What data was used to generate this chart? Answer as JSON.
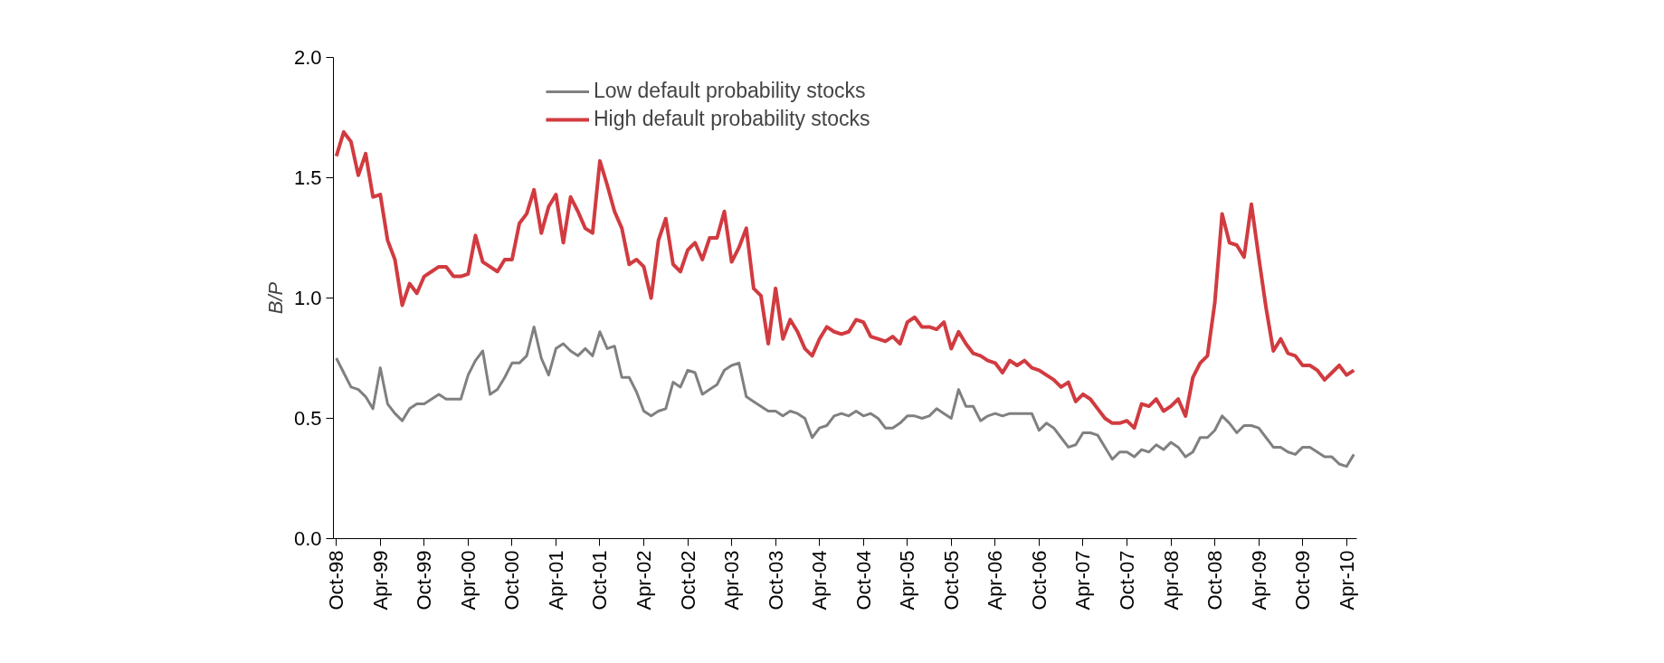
{
  "chart_data": {
    "type": "line",
    "ylabel": "B/P",
    "categories": [
      "Oct-98",
      null,
      null,
      null,
      null,
      null,
      "Apr-99",
      null,
      null,
      null,
      null,
      null,
      "Oct-99",
      null,
      null,
      null,
      null,
      null,
      "Apr-00",
      null,
      null,
      null,
      null,
      null,
      "Oct-00",
      null,
      null,
      null,
      null,
      null,
      "Apr-01",
      null,
      null,
      null,
      null,
      null,
      "Oct-01",
      null,
      null,
      null,
      null,
      null,
      "Apr-02",
      null,
      null,
      null,
      null,
      null,
      "Oct-02",
      null,
      null,
      null,
      null,
      null,
      "Apr-03",
      null,
      null,
      null,
      null,
      null,
      "Oct-03",
      null,
      null,
      null,
      null,
      null,
      "Apr-04",
      null,
      null,
      null,
      null,
      null,
      "Oct-04",
      null,
      null,
      null,
      null,
      null,
      "Apr-05",
      null,
      null,
      null,
      null,
      null,
      "Oct-05",
      null,
      null,
      null,
      null,
      null,
      "Apr-06",
      null,
      null,
      null,
      null,
      null,
      "Oct-06",
      null,
      null,
      null,
      null,
      null,
      "Apr-07",
      null,
      null,
      null,
      null,
      null,
      "Oct-07",
      null,
      null,
      null,
      null,
      null,
      "Apr-08",
      null,
      null,
      null,
      null,
      null,
      "Oct-08",
      null,
      null,
      null,
      null,
      null,
      "Apr-09",
      null,
      null,
      null,
      null,
      null,
      "Oct-09",
      null,
      null,
      null,
      null,
      null,
      "Apr-10",
      null
    ],
    "series": [
      {
        "name": "Low default probability stocks",
        "color": "#808080",
        "values": [
          0.75,
          0.69,
          0.63,
          0.62,
          0.59,
          0.54,
          0.71,
          0.56,
          0.52,
          0.49,
          0.54,
          0.56,
          0.56,
          0.58,
          0.6,
          0.58,
          0.58,
          0.58,
          0.68,
          0.74,
          0.78,
          0.6,
          0.62,
          0.67,
          0.73,
          0.73,
          0.76,
          0.88,
          0.75,
          0.68,
          0.79,
          0.81,
          0.78,
          0.76,
          0.79,
          0.76,
          0.86,
          0.79,
          0.8,
          0.67,
          0.67,
          0.61,
          0.53,
          0.51,
          0.53,
          0.54,
          0.65,
          0.63,
          0.7,
          0.69,
          0.6,
          0.62,
          0.64,
          0.7,
          0.72,
          0.73,
          0.59,
          0.57,
          0.55,
          0.53,
          0.53,
          0.51,
          0.53,
          0.52,
          0.5,
          0.42,
          0.46,
          0.47,
          0.51,
          0.52,
          0.51,
          0.53,
          0.51,
          0.52,
          0.5,
          0.46,
          0.46,
          0.48,
          0.51,
          0.51,
          0.5,
          0.51,
          0.54,
          0.52,
          0.5,
          0.62,
          0.55,
          0.55,
          0.49,
          0.51,
          0.52,
          0.51,
          0.52,
          0.52,
          0.52,
          0.52,
          0.45,
          0.48,
          0.46,
          0.42,
          0.38,
          0.39,
          0.44,
          0.44,
          0.43,
          0.38,
          0.33,
          0.36,
          0.36,
          0.34,
          0.37,
          0.36,
          0.39,
          0.37,
          0.4,
          0.38,
          0.34,
          0.36,
          0.42,
          0.42,
          0.45,
          0.51,
          0.48,
          0.44,
          0.47,
          0.47,
          0.46,
          0.42,
          0.38,
          0.38,
          0.36,
          0.35,
          0.38,
          0.38,
          0.36,
          0.34,
          0.34,
          0.31,
          0.3,
          0.35
        ]
      },
      {
        "name": "High default probability stocks",
        "color": "#d13b40",
        "values": [
          1.59,
          1.69,
          1.65,
          1.51,
          1.6,
          1.42,
          1.43,
          1.24,
          1.16,
          0.97,
          1.06,
          1.02,
          1.09,
          1.11,
          1.13,
          1.13,
          1.09,
          1.09,
          1.1,
          1.26,
          1.15,
          1.13,
          1.11,
          1.16,
          1.16,
          1.31,
          1.35,
          1.45,
          1.27,
          1.38,
          1.43,
          1.23,
          1.42,
          1.36,
          1.29,
          1.27,
          1.57,
          1.47,
          1.36,
          1.29,
          1.14,
          1.16,
          1.13,
          1.0,
          1.24,
          1.33,
          1.14,
          1.11,
          1.2,
          1.23,
          1.16,
          1.25,
          1.25,
          1.36,
          1.15,
          1.21,
          1.29,
          1.04,
          1.01,
          0.81,
          1.04,
          0.83,
          0.91,
          0.86,
          0.79,
          0.76,
          0.83,
          0.88,
          0.86,
          0.85,
          0.86,
          0.91,
          0.9,
          0.84,
          0.83,
          0.82,
          0.84,
          0.81,
          0.9,
          0.92,
          0.88,
          0.88,
          0.87,
          0.9,
          0.79,
          0.86,
          0.81,
          0.77,
          0.76,
          0.74,
          0.73,
          0.69,
          0.74,
          0.72,
          0.74,
          0.71,
          0.7,
          0.68,
          0.66,
          0.63,
          0.65,
          0.57,
          0.6,
          0.58,
          0.54,
          0.5,
          0.48,
          0.48,
          0.49,
          0.46,
          0.56,
          0.55,
          0.58,
          0.53,
          0.55,
          0.58,
          0.51,
          0.67,
          0.73,
          0.76,
          0.98,
          1.35,
          1.23,
          1.22,
          1.17,
          1.39,
          1.17,
          0.96,
          0.78,
          0.83,
          0.77,
          0.76,
          0.72,
          0.72,
          0.7,
          0.66,
          0.69,
          0.72,
          0.68,
          0.7
        ]
      }
    ],
    "ylim": [
      0,
      2.0
    ],
    "yticks": [
      {
        "value": 0,
        "label": "0.0"
      },
      {
        "value": 0.5,
        "label": "0.5"
      },
      {
        "value": 1.0,
        "label": "1.0"
      },
      {
        "value": 1.5,
        "label": "1.5"
      },
      {
        "value": 2.0,
        "label": "2.0"
      }
    ],
    "legend": "top"
  }
}
